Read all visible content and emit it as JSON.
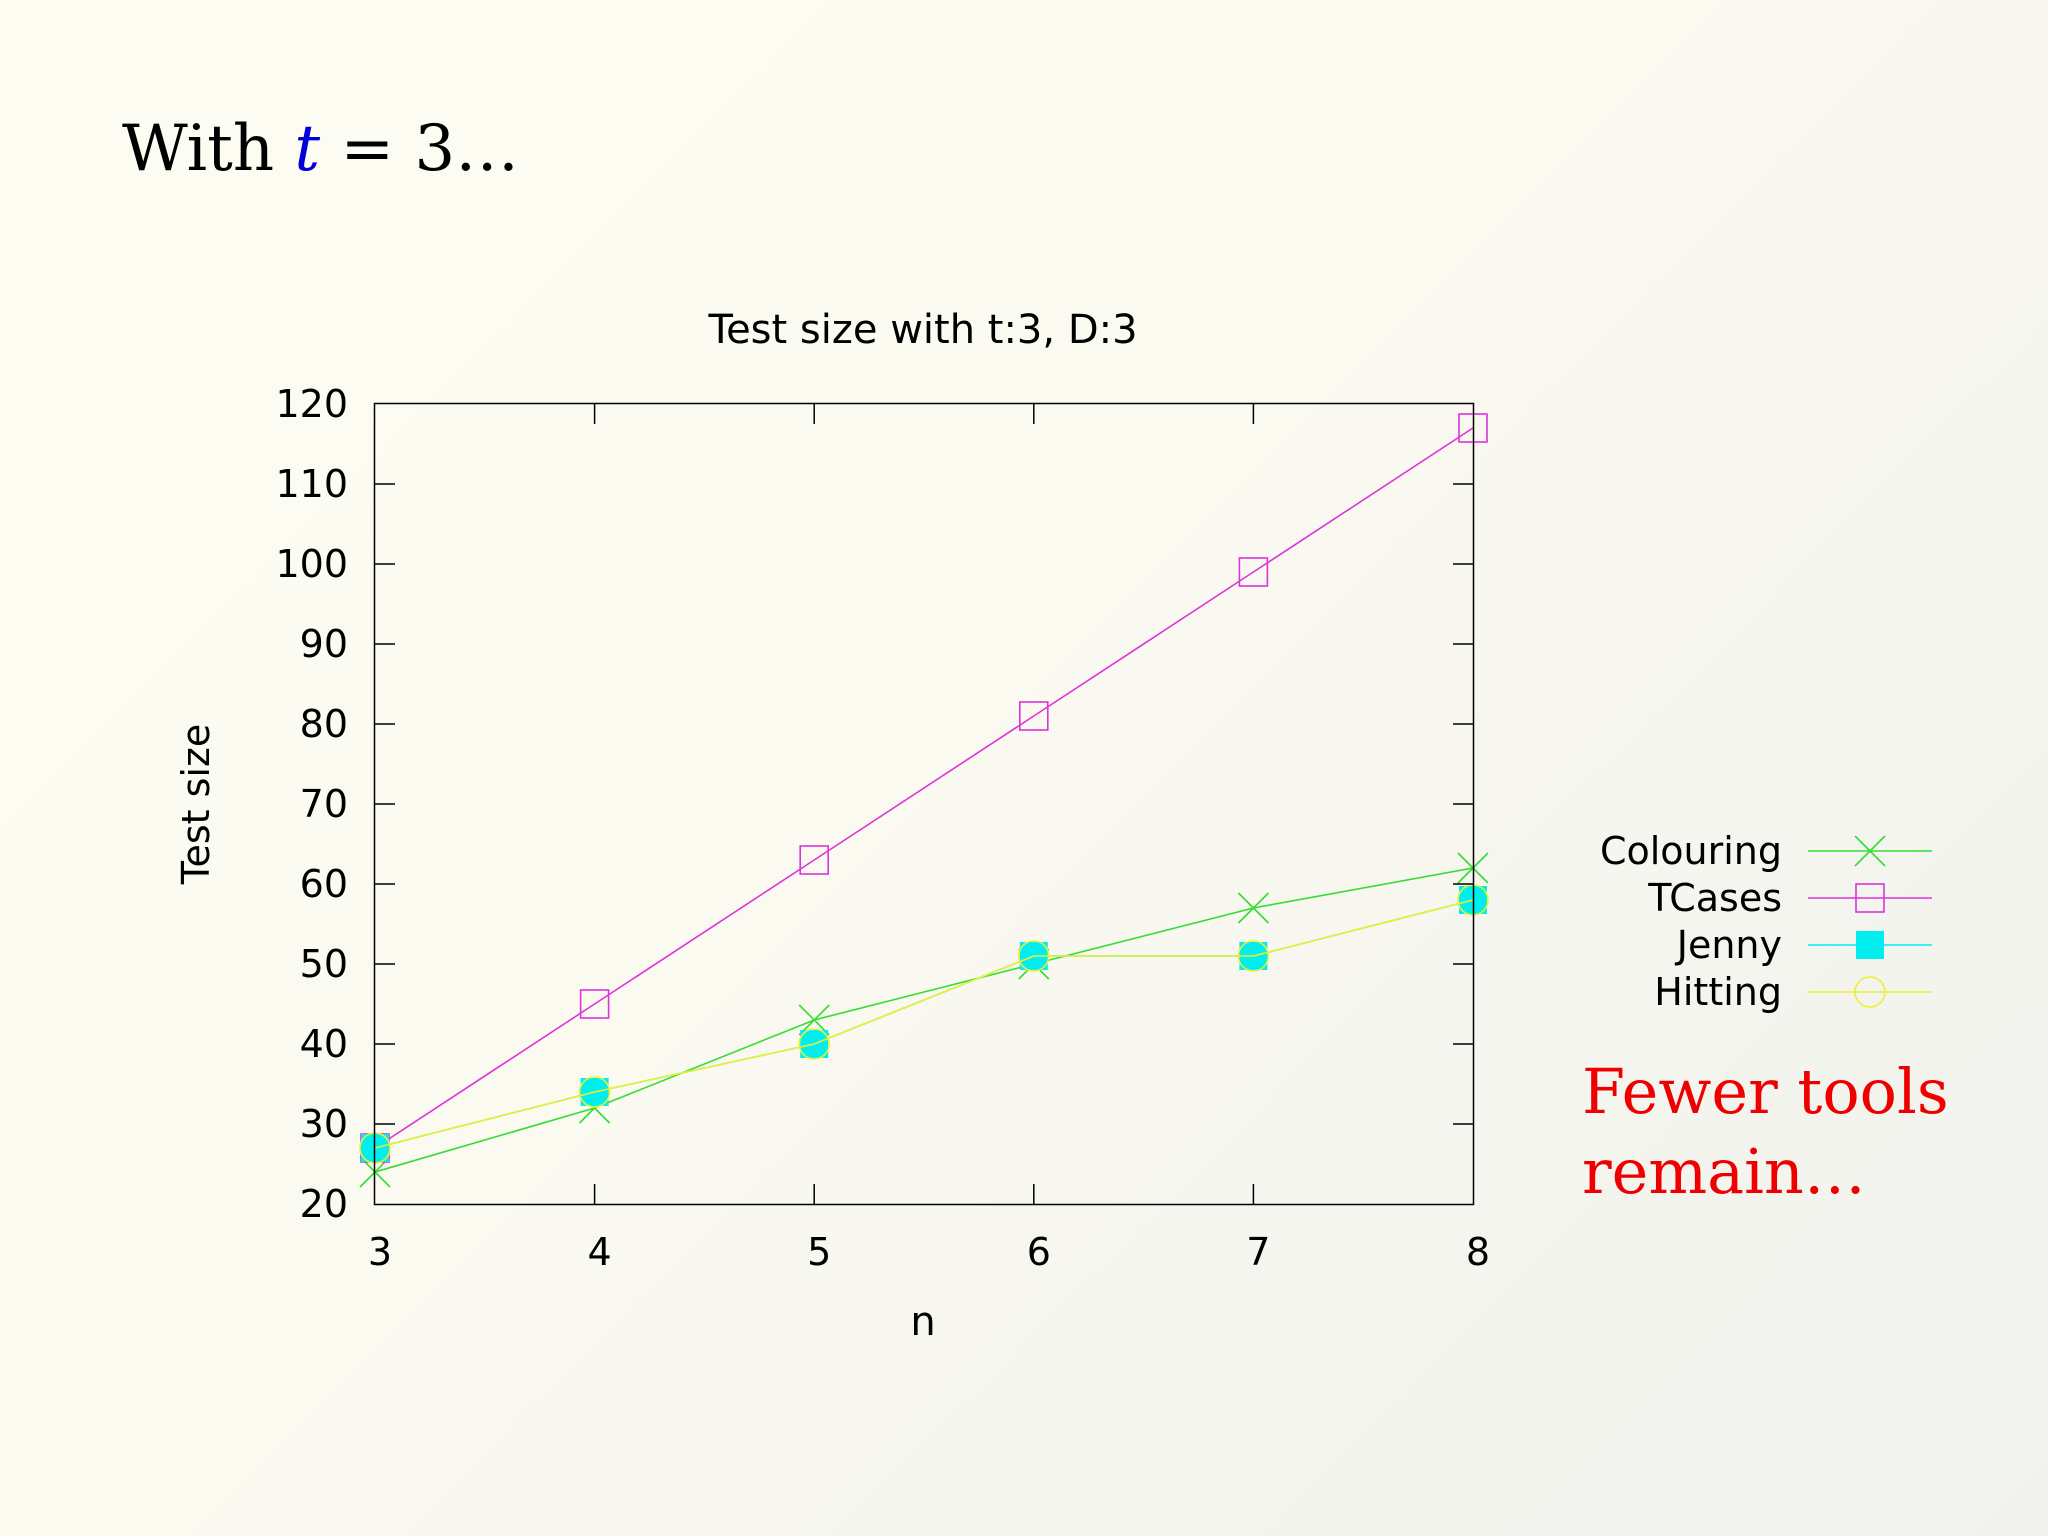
{
  "slide": {
    "title_prefix": "With ",
    "title_var": "t",
    "title_suffix": " = 3…",
    "note_line1": "Fewer tools",
    "note_line2": "remain…",
    "var_color": "#0000dd",
    "note_color": "#ee0000"
  },
  "chart_data": {
    "type": "line",
    "title": "Test size with t:3, D:3",
    "xlabel": "n",
    "ylabel": "Test size",
    "x": [
      3,
      4,
      5,
      6,
      7,
      8
    ],
    "xlim": [
      3,
      8
    ],
    "ylim": [
      20,
      120
    ],
    "xticks": [
      "3",
      "4",
      "5",
      "6",
      "7",
      "8"
    ],
    "yticks": [
      "20",
      "30",
      "40",
      "50",
      "60",
      "70",
      "80",
      "90",
      "100",
      "110",
      "120"
    ],
    "grid": false,
    "legend_position": "right",
    "series": [
      {
        "name": "Colouring",
        "values": [
          24,
          32,
          43,
          50,
          57,
          62
        ],
        "color": "#33dd33",
        "marker": "x"
      },
      {
        "name": "TCases",
        "values": [
          27,
          45,
          63,
          81,
          99,
          117
        ],
        "color": "#dd33dd",
        "marker": "square-open"
      },
      {
        "name": "Jenny",
        "values": [
          27,
          34,
          40,
          51,
          51,
          58
        ],
        "color": "#00eeee",
        "marker": "square-filled"
      },
      {
        "name": "Hitting",
        "values": [
          27,
          34,
          40,
          51,
          51,
          58
        ],
        "color": "#eeee33",
        "marker": "circle-open"
      }
    ]
  }
}
